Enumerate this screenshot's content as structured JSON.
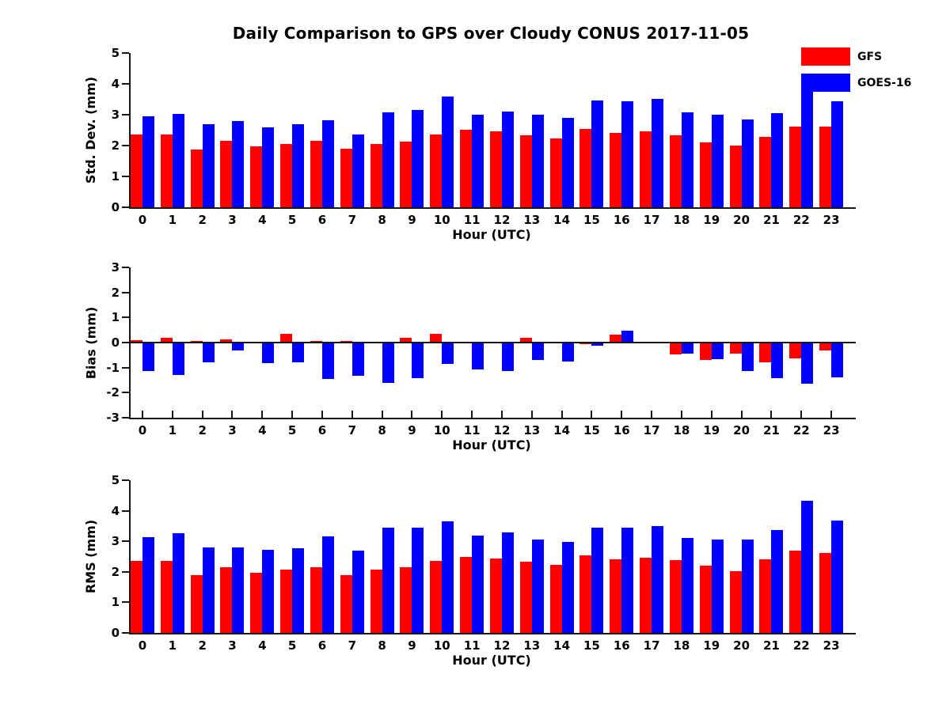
{
  "title": "Daily Comparison to GPS over Cloudy CONUS 2017-11-05",
  "legend": [
    {
      "label": "GFS",
      "color": "#ff0000"
    },
    {
      "label": "GOES-16",
      "color": "#0000ff"
    }
  ],
  "chart_data": [
    {
      "type": "bar",
      "title": "Daily Comparison to GPS over Cloudy CONUS 2017-11-05",
      "xlabel": "Hour (UTC)",
      "ylabel": "Std. Dev. (mm)",
      "ylim": [
        0,
        5
      ],
      "yticks": [
        0,
        1,
        2,
        3,
        4,
        5
      ],
      "grid": "off",
      "legend_position": "upper right",
      "categories": [
        "0",
        "1",
        "2",
        "3",
        "4",
        "5",
        "6",
        "7",
        "8",
        "9",
        "10",
        "11",
        "12",
        "13",
        "14",
        "15",
        "16",
        "17",
        "18",
        "19",
        "20",
        "21",
        "22",
        "23"
      ],
      "series": [
        {
          "name": "GFS",
          "color": "#ff0000",
          "values": [
            2.35,
            2.35,
            1.88,
            2.15,
            1.98,
            2.04,
            2.15,
            1.9,
            2.04,
            2.12,
            2.36,
            2.51,
            2.45,
            2.33,
            2.24,
            2.55,
            2.42,
            2.47,
            2.33,
            2.1,
            1.99,
            2.28,
            2.61,
            2.61
          ]
        },
        {
          "name": "GOES-16",
          "color": "#0000ff",
          "values": [
            2.95,
            3.02,
            2.68,
            2.79,
            2.58,
            2.68,
            2.81,
            2.37,
            3.08,
            3.15,
            3.58,
            3.0,
            3.1,
            3.01,
            2.91,
            3.46,
            3.43,
            3.52,
            3.08,
            3.0,
            2.85,
            3.06,
            4.05,
            3.43
          ]
        }
      ]
    },
    {
      "type": "bar",
      "xlabel": "Hour (UTC)",
      "ylabel": "Bias (mm)",
      "ylim": [
        -3,
        3
      ],
      "yticks": [
        -3,
        -2,
        -1,
        0,
        1,
        2,
        3
      ],
      "grid": "off",
      "categories": [
        "0",
        "1",
        "2",
        "3",
        "4",
        "5",
        "6",
        "7",
        "8",
        "9",
        "10",
        "11",
        "12",
        "13",
        "14",
        "15",
        "16",
        "17",
        "18",
        "19",
        "20",
        "21",
        "22",
        "23"
      ],
      "series": [
        {
          "name": "GFS",
          "color": "#ff0000",
          "values": [
            0.1,
            0.18,
            0.05,
            0.13,
            0.02,
            0.35,
            0.05,
            0.05,
            -0.03,
            0.2,
            0.34,
            -0.03,
            0.04,
            0.19,
            -0.02,
            -0.06,
            0.32,
            -0.01,
            -0.46,
            -0.68,
            -0.45,
            -0.8,
            -0.62,
            -0.32
          ]
        },
        {
          "name": "GOES-16",
          "color": "#0000ff",
          "values": [
            -1.15,
            -1.28,
            -0.78,
            -0.3,
            -0.83,
            -0.8,
            -1.45,
            -1.33,
            -1.6,
            -1.43,
            -0.86,
            -1.06,
            -1.15,
            -0.7,
            -0.77,
            -0.12,
            0.48,
            -0.04,
            -0.44,
            -0.67,
            -1.15,
            -1.43,
            -1.65,
            -1.38
          ]
        }
      ]
    },
    {
      "type": "bar",
      "xlabel": "Hour (UTC)",
      "ylabel": "RMS (mm)",
      "ylim": [
        0,
        5
      ],
      "yticks": [
        0,
        1,
        2,
        3,
        4,
        5
      ],
      "grid": "off",
      "categories": [
        "0",
        "1",
        "2",
        "3",
        "4",
        "5",
        "6",
        "7",
        "8",
        "9",
        "10",
        "11",
        "12",
        "13",
        "14",
        "15",
        "16",
        "17",
        "18",
        "19",
        "20",
        "21",
        "22",
        "23"
      ],
      "series": [
        {
          "name": "GFS",
          "color": "#ff0000",
          "values": [
            2.37,
            2.37,
            1.9,
            2.16,
            1.98,
            2.07,
            2.16,
            1.9,
            2.06,
            2.14,
            2.37,
            2.49,
            2.44,
            2.33,
            2.23,
            2.54,
            2.41,
            2.46,
            2.39,
            2.21,
            2.02,
            2.41,
            2.7,
            2.62
          ]
        },
        {
          "name": "GOES-16",
          "color": "#0000ff",
          "values": [
            3.14,
            3.27,
            2.8,
            2.81,
            2.72,
            2.77,
            3.16,
            2.69,
            3.44,
            3.45,
            3.65,
            3.19,
            3.3,
            3.06,
            2.97,
            3.44,
            3.44,
            3.5,
            3.11,
            3.05,
            3.06,
            3.36,
            4.33,
            3.68
          ]
        }
      ]
    }
  ]
}
